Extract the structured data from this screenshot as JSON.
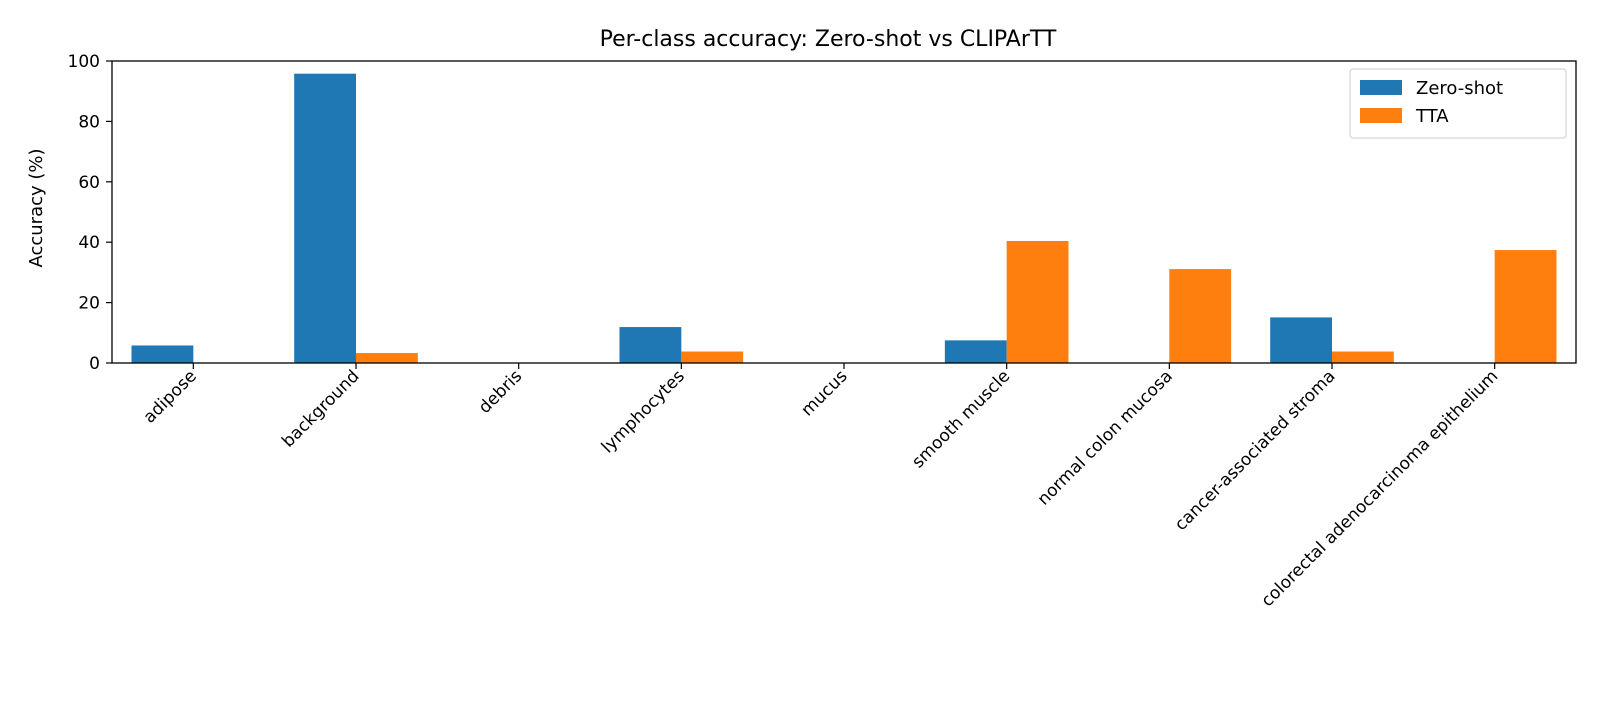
{
  "chart_data": {
    "type": "bar",
    "title": "Per-class accuracy: Zero-shot vs CLIPArTT",
    "xlabel": "",
    "ylabel": "Accuracy (%)",
    "ylim": [
      0,
      100
    ],
    "yticks": [
      0,
      20,
      40,
      60,
      80,
      100
    ],
    "grid": false,
    "legend_position": "top-right",
    "categories": [
      "adipose",
      "background",
      "debris",
      "lymphocytes",
      "mucus",
      "smooth muscle",
      "normal colon mucosa",
      "cancer-associated stroma",
      "colorectal adenocarcinoma epithelium"
    ],
    "series": [
      {
        "name": "Zero-shot",
        "color": "#1f77b4",
        "values": [
          5.8,
          95.8,
          0,
          11.9,
          0,
          7.5,
          0,
          15.1,
          0
        ]
      },
      {
        "name": "TTA",
        "color": "#ff7f0e",
        "values": [
          0,
          3.3,
          0,
          3.8,
          0,
          40.4,
          31.1,
          3.8,
          37.4
        ]
      }
    ]
  }
}
